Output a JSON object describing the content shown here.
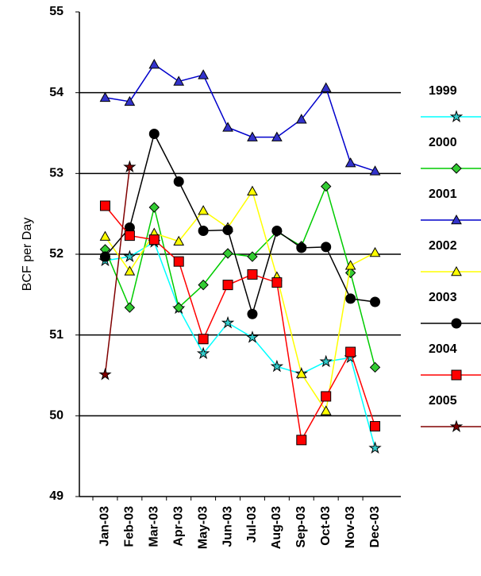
{
  "chart_data": {
    "type": "line",
    "y_label": "BCF per Day",
    "categories": [
      "Jan-03",
      "Feb-03",
      "Mar-03",
      "Apr-03",
      "May-03",
      "Jun-03",
      "Jul-03",
      "Aug-03",
      "Sep-03",
      "Oct-03",
      "Nov-03",
      "Dec-03"
    ],
    "ylim": [
      49,
      55
    ],
    "yticks": [
      49,
      50,
      51,
      52,
      53,
      54,
      55
    ],
    "grid": true,
    "series": [
      {
        "name": "1999",
        "color": "#00ffff",
        "marker": "star",
        "marker_color": "#33cccc",
        "values": [
          51.92,
          51.97,
          52.15,
          51.33,
          50.77,
          51.15,
          50.97,
          50.61,
          50.52,
          50.67,
          50.72,
          49.6
        ]
      },
      {
        "name": "2000",
        "color": "#00cc00",
        "marker": "diamond",
        "marker_color": "#33cc33",
        "values": [
          52.06,
          51.34,
          52.58,
          51.34,
          51.62,
          52.01,
          51.97,
          52.28,
          52.1,
          52.84,
          51.77,
          50.6
        ]
      },
      {
        "name": "2001",
        "color": "#0000cc",
        "marker": "triangle",
        "marker_color": "#3333cc",
        "values": [
          53.94,
          53.89,
          54.35,
          54.14,
          54.22,
          53.57,
          53.45,
          53.45,
          53.67,
          54.06,
          53.13,
          53.03
        ]
      },
      {
        "name": "2002",
        "color": "#ffff00",
        "marker": "triangle",
        "marker_color": "#ffff00",
        "values": [
          52.22,
          51.79,
          52.26,
          52.16,
          52.54,
          52.33,
          52.78,
          51.72,
          50.52,
          50.06,
          51.86,
          52.02
        ]
      },
      {
        "name": "2003",
        "color": "#000000",
        "marker": "circle",
        "marker_color": "#000000",
        "values": [
          51.97,
          52.33,
          53.49,
          52.9,
          52.29,
          52.3,
          51.26,
          52.29,
          52.08,
          52.09,
          51.45,
          51.41
        ]
      },
      {
        "name": "2004",
        "color": "#ff0000",
        "marker": "square",
        "marker_color": "#ff0000",
        "values": [
          52.6,
          52.23,
          52.18,
          51.91,
          50.95,
          51.62,
          51.75,
          51.65,
          49.7,
          50.24,
          50.79,
          49.87
        ]
      },
      {
        "name": "2005",
        "color": "#800000",
        "marker": "star",
        "marker_color": "#800000",
        "values": [
          50.51,
          53.08,
          null,
          null,
          null,
          null,
          null,
          null,
          null,
          null,
          null,
          null
        ]
      }
    ]
  }
}
